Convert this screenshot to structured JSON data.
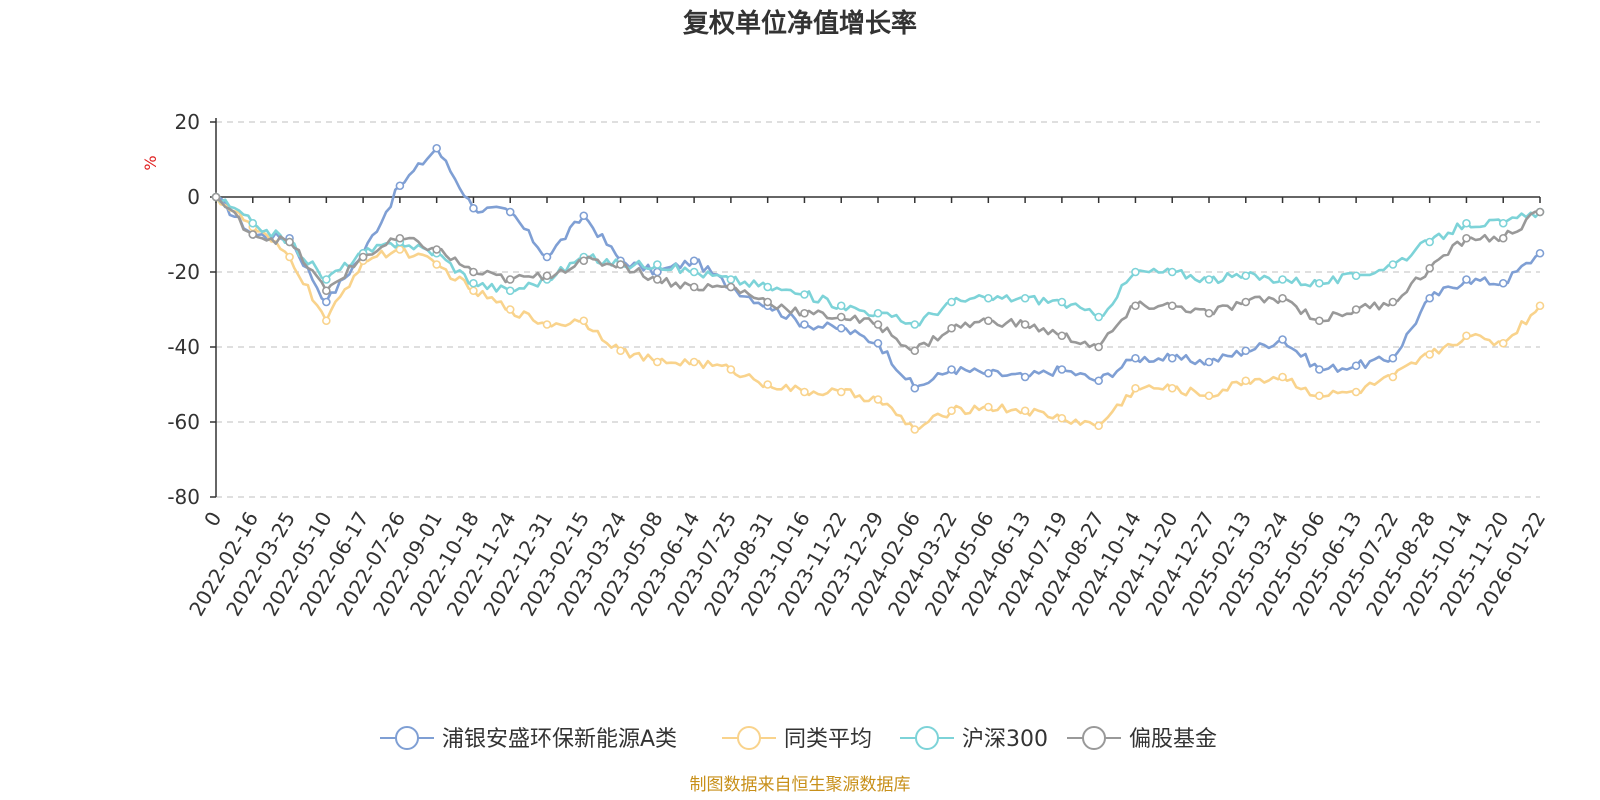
{
  "chart_data": {
    "type": "line",
    "title": "复权单位净值增长率",
    "ylabel": "%",
    "ylim": [
      -80,
      20
    ],
    "yticks": [
      20,
      0,
      -20,
      -40,
      -60,
      -80
    ],
    "categories": [
      "0",
      "2022-02-16",
      "2022-03-25",
      "2022-05-10",
      "2022-06-17",
      "2022-07-26",
      "2022-09-01",
      "2022-10-18",
      "2022-11-24",
      "2022-12-31",
      "2023-02-15",
      "2023-03-24",
      "2023-05-08",
      "2023-06-14",
      "2023-07-25",
      "2023-08-31",
      "2023-10-16",
      "2023-11-22",
      "2023-12-29",
      "2024-02-06",
      "2024-03-22",
      "2024-05-06",
      "2024-06-13",
      "2024-07-19",
      "2024-08-27",
      "2024-10-14",
      "2024-11-20",
      "2024-12-27",
      "2025-02-13",
      "2025-03-24",
      "2025-05-06",
      "2025-06-13",
      "2025-07-22",
      "2025-08-28",
      "2025-10-14",
      "2025-11-20",
      "2026-01-22"
    ],
    "series": [
      {
        "name": "浦银安盛环保新能源A类",
        "color": "#7f9fd4",
        "values": [
          0,
          -10,
          -11,
          -28,
          -15,
          3,
          13,
          -3,
          -4,
          -16,
          -5,
          -17,
          -20,
          -17,
          -24,
          -29,
          -34,
          -35,
          -39,
          -51,
          -46,
          -47,
          -48,
          -46,
          -49,
          -43,
          -43,
          -44,
          -41,
          -38,
          -46,
          -45,
          -43,
          -27,
          -22,
          -23,
          -15
        ]
      },
      {
        "name": "同类平均",
        "color": "#f9d38c",
        "values": [
          0,
          -8,
          -16,
          -33,
          -17,
          -14,
          -18,
          -25,
          -30,
          -34,
          -33,
          -41,
          -44,
          -44,
          -46,
          -50,
          -52,
          -52,
          -54,
          -62,
          -57,
          -56,
          -57,
          -59,
          -61,
          -51,
          -51,
          -53,
          -49,
          -48,
          -53,
          -52,
          -48,
          -42,
          -37,
          -39,
          -29
        ]
      },
      {
        "name": "沪深300",
        "color": "#7dd3d8",
        "values": [
          0,
          -7,
          -12,
          -22,
          -15,
          -12,
          -15,
          -23,
          -25,
          -22,
          -16,
          -18,
          -18,
          -20,
          -22,
          -24,
          -26,
          -29,
          -31,
          -34,
          -28,
          -27,
          -27,
          -28,
          -32,
          -20,
          -20,
          -22,
          -21,
          -22,
          -23,
          -21,
          -18,
          -12,
          -7,
          -7,
          -4
        ]
      },
      {
        "name": "偏股基金",
        "color": "#999999",
        "values": [
          0,
          -10,
          -12,
          -25,
          -16,
          -11,
          -14,
          -20,
          -22,
          -21,
          -17,
          -18,
          -22,
          -24,
          -24,
          -28,
          -31,
          -32,
          -34,
          -41,
          -35,
          -33,
          -34,
          -37,
          -40,
          -29,
          -29,
          -31,
          -28,
          -27,
          -33,
          -30,
          -28,
          -19,
          -11,
          -11,
          -4
        ]
      }
    ]
  },
  "source": "制图数据来自恒生聚源数据库"
}
